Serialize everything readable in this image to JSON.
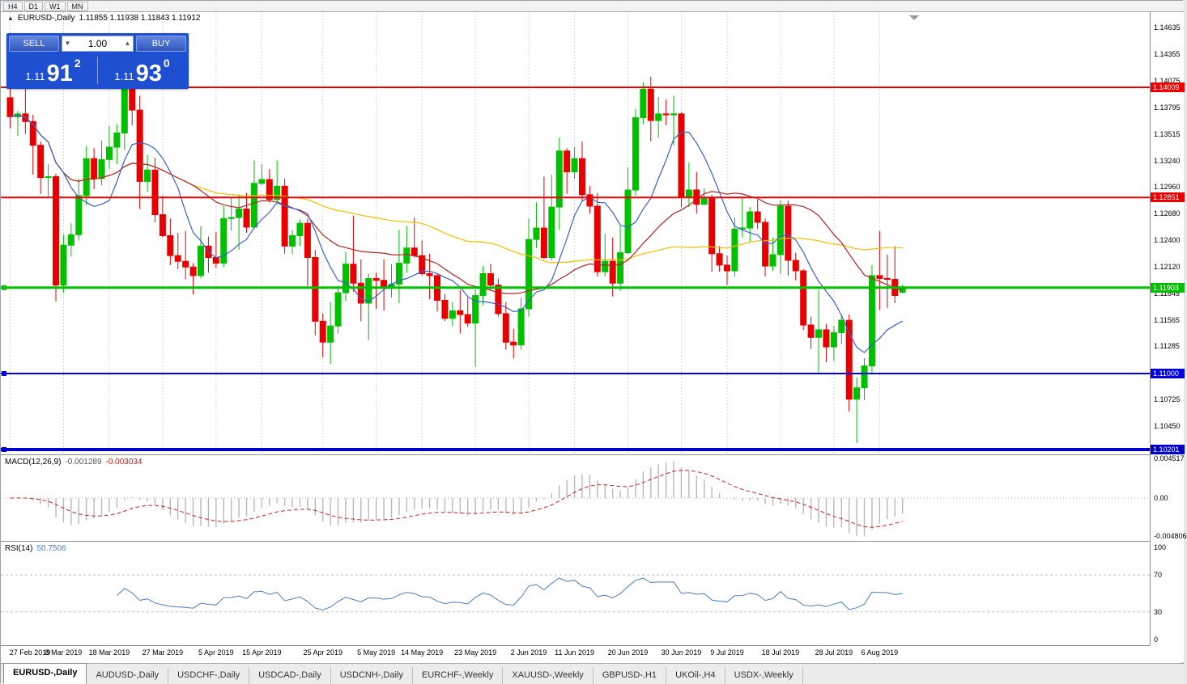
{
  "toolbar": {
    "timeframes": [
      "H4",
      "D1",
      "W1",
      "MN"
    ]
  },
  "chart_header": {
    "symbol": "EURUSD-,Daily",
    "ohlc": "1.11855 1.11938 1.11843 1.11912",
    "collapse_icon": "▲"
  },
  "trade_panel": {
    "sell_label": "SELL",
    "buy_label": "BUY",
    "volume": "1.00",
    "bid": {
      "prefix": "1.11",
      "big": "91",
      "sup": "2"
    },
    "ask": {
      "prefix": "1.11",
      "big": "93",
      "sup": "0"
    },
    "panel_color": "#1E4FD1",
    "button_color": "#3358BD"
  },
  "chart_data": {
    "type": "candlestick",
    "symbol": "EURUSD",
    "timeframe": "Daily",
    "colors": {
      "bull": "#00C000",
      "bear": "#E80000",
      "grid": "#d7d7d7"
    },
    "price_ticks": [
      "1.14635",
      "1.14355",
      "1.14075",
      "1.13795",
      "1.13515",
      "1.13240",
      "1.12960",
      "1.12680",
      "1.12400",
      "1.12120",
      "1.11845",
      "1.11565",
      "1.11285",
      "1.10725",
      "1.10450"
    ],
    "hlines": [
      {
        "price": 1.14009,
        "label": "1.14009",
        "color": "#EE0000",
        "thickness": 2,
        "handle": false
      },
      {
        "price": 1.12851,
        "label": "1.12851",
        "color": "#EE0000",
        "thickness": 2,
        "handle": false
      },
      {
        "price": 1.11903,
        "label": "1.11903",
        "color": "#00C000",
        "thickness": 3,
        "handle": true
      },
      {
        "price": 1.11,
        "label": "1.11000",
        "color": "#0000E0",
        "thickness": 2,
        "handle": true
      },
      {
        "price": 1.10201,
        "label": "1.10201",
        "color": "#0000CC",
        "thickness": 4,
        "handle": true
      }
    ],
    "moving_averages": [
      {
        "period": 8,
        "color": "#3A5FCD"
      },
      {
        "period": 25,
        "color": "#B22222"
      },
      {
        "period": 55,
        "color": "#F0C000"
      }
    ],
    "date_axis": [
      {
        "label": "27 Feb 2019",
        "i": 0
      },
      {
        "label": "8 Mar 2019",
        "i": 7
      },
      {
        "label": "18 Mar 2019",
        "i": 13
      },
      {
        "label": "27 Mar 2019",
        "i": 20
      },
      {
        "label": "5 Apr 2019",
        "i": 27
      },
      {
        "label": "15 Apr 2019",
        "i": 33
      },
      {
        "label": "25 Apr 2019",
        "i": 41
      },
      {
        "label": "5 May 2019",
        "i": 48
      },
      {
        "label": "14 May 2019",
        "i": 54
      },
      {
        "label": "23 May 2019",
        "i": 61
      },
      {
        "label": "2 Jun 2019",
        "i": 68
      },
      {
        "label": "11 Jun 2019",
        "i": 74
      },
      {
        "label": "20 Jun 2019",
        "i": 81
      },
      {
        "label": "30 Jun 2019",
        "i": 88
      },
      {
        "label": "9 Jul 2019",
        "i": 94
      },
      {
        "label": "18 Jul 2019",
        "i": 101
      },
      {
        "label": "28 Jul 2019",
        "i": 108
      },
      {
        "label": "6 Aug 2019",
        "i": 114
      }
    ],
    "candles": [
      [
        1.139,
        1.1404,
        1.1358,
        1.137
      ],
      [
        1.137,
        1.1376,
        1.135,
        1.1373
      ],
      [
        1.1373,
        1.1408,
        1.1352,
        1.1365
      ],
      [
        1.1365,
        1.1372,
        1.1309,
        1.134
      ],
      [
        1.134,
        1.1344,
        1.1289,
        1.1306
      ],
      [
        1.1306,
        1.132,
        1.1285,
        1.1307
      ],
      [
        1.1307,
        1.131,
        1.1176,
        1.1193
      ],
      [
        1.1193,
        1.1246,
        1.1185,
        1.1235
      ],
      [
        1.1235,
        1.1258,
        1.1223,
        1.1246
      ],
      [
        1.1246,
        1.1305,
        1.124,
        1.1287
      ],
      [
        1.1287,
        1.1339,
        1.1277,
        1.1326
      ],
      [
        1.1326,
        1.1337,
        1.1294,
        1.1305
      ],
      [
        1.1305,
        1.1345,
        1.1298,
        1.1325
      ],
      [
        1.1325,
        1.136,
        1.1315,
        1.1338
      ],
      [
        1.1338,
        1.1362,
        1.132,
        1.1353
      ],
      [
        1.1353,
        1.1448,
        1.1335,
        1.1415
      ],
      [
        1.1415,
        1.1438,
        1.1361,
        1.1377
      ],
      [
        1.1377,
        1.1392,
        1.1273,
        1.1302
      ],
      [
        1.1302,
        1.133,
        1.1291,
        1.1314
      ],
      [
        1.1314,
        1.1327,
        1.1259,
        1.1267
      ],
      [
        1.1267,
        1.1287,
        1.1243,
        1.1245
      ],
      [
        1.1245,
        1.1263,
        1.1214,
        1.1224
      ],
      [
        1.1224,
        1.1248,
        1.121,
        1.1218
      ],
      [
        1.1218,
        1.125,
        1.1199,
        1.1212
      ],
      [
        1.1212,
        1.1216,
        1.1183,
        1.1203
      ],
      [
        1.1203,
        1.1255,
        1.12,
        1.1234
      ],
      [
        1.1234,
        1.1244,
        1.1206,
        1.1222
      ],
      [
        1.1222,
        1.1249,
        1.1211,
        1.1216
      ],
      [
        1.1216,
        1.1276,
        1.1212,
        1.1263
      ],
      [
        1.1263,
        1.1285,
        1.125,
        1.1264
      ],
      [
        1.1264,
        1.1288,
        1.123,
        1.1273
      ],
      [
        1.1273,
        1.129,
        1.1248,
        1.1254
      ],
      [
        1.1254,
        1.1324,
        1.1252,
        1.13
      ],
      [
        1.13,
        1.132,
        1.1298,
        1.1304
      ],
      [
        1.1304,
        1.1315,
        1.128,
        1.1283
      ],
      [
        1.1283,
        1.1324,
        1.128,
        1.1297
      ],
      [
        1.1297,
        1.1305,
        1.1226,
        1.1234
      ],
      [
        1.1234,
        1.1251,
        1.1226,
        1.1245
      ],
      [
        1.1245,
        1.1262,
        1.1234,
        1.1258
      ],
      [
        1.1258,
        1.1263,
        1.1192,
        1.1222
      ],
      [
        1.1222,
        1.123,
        1.114,
        1.1155
      ],
      [
        1.1155,
        1.1163,
        1.1117,
        1.1133
      ],
      [
        1.1133,
        1.1175,
        1.111,
        1.115
      ],
      [
        1.115,
        1.1192,
        1.1142,
        1.1185
      ],
      [
        1.1185,
        1.1228,
        1.1176,
        1.1215
      ],
      [
        1.1215,
        1.1266,
        1.1186,
        1.1195
      ],
      [
        1.1195,
        1.122,
        1.1155,
        1.1174
      ],
      [
        1.1174,
        1.1205,
        1.1135,
        1.12
      ],
      [
        1.12,
        1.1206,
        1.1168,
        1.1198
      ],
      [
        1.1198,
        1.122,
        1.1166,
        1.119
      ],
      [
        1.119,
        1.1215,
        1.118,
        1.1194
      ],
      [
        1.1194,
        1.1251,
        1.1174,
        1.1216
      ],
      [
        1.1216,
        1.1255,
        1.1206,
        1.1232
      ],
      [
        1.1232,
        1.1264,
        1.1222,
        1.1224
      ],
      [
        1.1224,
        1.124,
        1.1203,
        1.1205
      ],
      [
        1.1205,
        1.1226,
        1.1178,
        1.1203
      ],
      [
        1.1203,
        1.1205,
        1.1165,
        1.1177
      ],
      [
        1.1177,
        1.1184,
        1.1155,
        1.1158
      ],
      [
        1.1158,
        1.1175,
        1.115,
        1.1166
      ],
      [
        1.1166,
        1.1188,
        1.1142,
        1.1162
      ],
      [
        1.1162,
        1.118,
        1.1149,
        1.1153
      ],
      [
        1.1153,
        1.1188,
        1.1107,
        1.1182
      ],
      [
        1.1182,
        1.1213,
        1.1172,
        1.1205
      ],
      [
        1.1205,
        1.1215,
        1.1187,
        1.1193
      ],
      [
        1.1193,
        1.12,
        1.116,
        1.1163
      ],
      [
        1.1163,
        1.1175,
        1.1125,
        1.1133
      ],
      [
        1.1133,
        1.1147,
        1.1116,
        1.113
      ],
      [
        1.113,
        1.118,
        1.1125,
        1.1168
      ],
      [
        1.1168,
        1.1263,
        1.116,
        1.1241
      ],
      [
        1.1241,
        1.128,
        1.1232,
        1.1253
      ],
      [
        1.1253,
        1.1307,
        1.122,
        1.1222
      ],
      [
        1.1222,
        1.1309,
        1.1219,
        1.1275
      ],
      [
        1.1275,
        1.1348,
        1.1251,
        1.1334
      ],
      [
        1.1334,
        1.1337,
        1.1289,
        1.1312
      ],
      [
        1.1312,
        1.1338,
        1.1305,
        1.1326
      ],
      [
        1.1326,
        1.1344,
        1.1281,
        1.1288
      ],
      [
        1.1288,
        1.1297,
        1.1268,
        1.1276
      ],
      [
        1.1276,
        1.129,
        1.1202,
        1.1207
      ],
      [
        1.1207,
        1.1247,
        1.1202,
        1.1218
      ],
      [
        1.1218,
        1.1243,
        1.1181,
        1.1195
      ],
      [
        1.1195,
        1.1255,
        1.1187,
        1.1227
      ],
      [
        1.1227,
        1.1317,
        1.1226,
        1.1293
      ],
      [
        1.1293,
        1.1378,
        1.1287,
        1.1369
      ],
      [
        1.1369,
        1.1406,
        1.1362,
        1.1399
      ],
      [
        1.1399,
        1.1412,
        1.1344,
        1.1366
      ],
      [
        1.1366,
        1.1391,
        1.1348,
        1.1373
      ],
      [
        1.1373,
        1.1388,
        1.1361,
        1.1372
      ],
      [
        1.1372,
        1.1392,
        1.134,
        1.1373
      ],
      [
        1.1373,
        1.1375,
        1.1275,
        1.1285
      ],
      [
        1.1285,
        1.1322,
        1.1275,
        1.1293
      ],
      [
        1.1293,
        1.1312,
        1.1268,
        1.1278
      ],
      [
        1.1278,
        1.1295,
        1.1277,
        1.1284
      ],
      [
        1.1284,
        1.1288,
        1.1207,
        1.1226
      ],
      [
        1.1226,
        1.1234,
        1.1207,
        1.1214
      ],
      [
        1.1214,
        1.1224,
        1.1193,
        1.1208
      ],
      [
        1.1208,
        1.1264,
        1.1202,
        1.1252
      ],
      [
        1.1252,
        1.1285,
        1.1243,
        1.1253
      ],
      [
        1.1253,
        1.1275,
        1.1239,
        1.127
      ],
      [
        1.127,
        1.1283,
        1.1252,
        1.1259
      ],
      [
        1.1259,
        1.1263,
        1.1202,
        1.1213
      ],
      [
        1.1213,
        1.1243,
        1.1208,
        1.1225
      ],
      [
        1.1225,
        1.1282,
        1.1205,
        1.1276
      ],
      [
        1.1276,
        1.1282,
        1.1203,
        1.1219
      ],
      [
        1.1219,
        1.1227,
        1.1198,
        1.1208
      ],
      [
        1.1208,
        1.121,
        1.1146,
        1.1151
      ],
      [
        1.1151,
        1.116,
        1.1126,
        1.1138
      ],
      [
        1.1138,
        1.1188,
        1.1101,
        1.1146
      ],
      [
        1.1146,
        1.1152,
        1.1112,
        1.1128
      ],
      [
        1.1128,
        1.115,
        1.1113,
        1.1143
      ],
      [
        1.1143,
        1.1162,
        1.1131,
        1.1156
      ],
      [
        1.1156,
        1.1162,
        1.106,
        1.1073
      ],
      [
        1.1073,
        1.1096,
        1.1027,
        1.1085
      ],
      [
        1.1085,
        1.1116,
        1.1072,
        1.1108
      ],
      [
        1.1108,
        1.1214,
        1.1101,
        1.1203
      ],
      [
        1.1203,
        1.125,
        1.1167,
        1.12
      ],
      [
        1.12,
        1.1225,
        1.1169,
        1.1199
      ],
      [
        1.1199,
        1.1234,
        1.1174,
        1.1182
      ],
      [
        1.11855,
        1.11938,
        1.11843,
        1.11912
      ]
    ],
    "macd": {
      "name": "MACD(12,26,9)",
      "main_value": "-0.001289",
      "signal_value": "-0.003034",
      "axis_max": "0.004517",
      "axis_zero": "0.00",
      "axis_min": "-0.004806",
      "hist_color": "#b8b8b8",
      "signal_color": "#cc2222"
    },
    "rsi": {
      "name": "RSI(14)",
      "value": "50.7506",
      "axis": [
        "100",
        "70",
        "30",
        "0"
      ],
      "levels": [
        70,
        30
      ],
      "line_color": "#4a7ebb"
    }
  },
  "tabs": [
    {
      "label": "EURUSD-,Daily",
      "active": true
    },
    {
      "label": "AUDUSD-,Daily",
      "active": false
    },
    {
      "label": "USDCHF-,Daily",
      "active": false
    },
    {
      "label": "USDCAD-,Daily",
      "active": false
    },
    {
      "label": "USDCNH-,Daily",
      "active": false
    },
    {
      "label": "EURCHF-,Weekly",
      "active": false
    },
    {
      "label": "XAUUSD-,Weekly",
      "active": false
    },
    {
      "label": "GBPUSD-,H1",
      "active": false
    },
    {
      "label": "UKOil-,H4",
      "active": false
    },
    {
      "label": "USDX-,Weekly",
      "active": false
    }
  ]
}
